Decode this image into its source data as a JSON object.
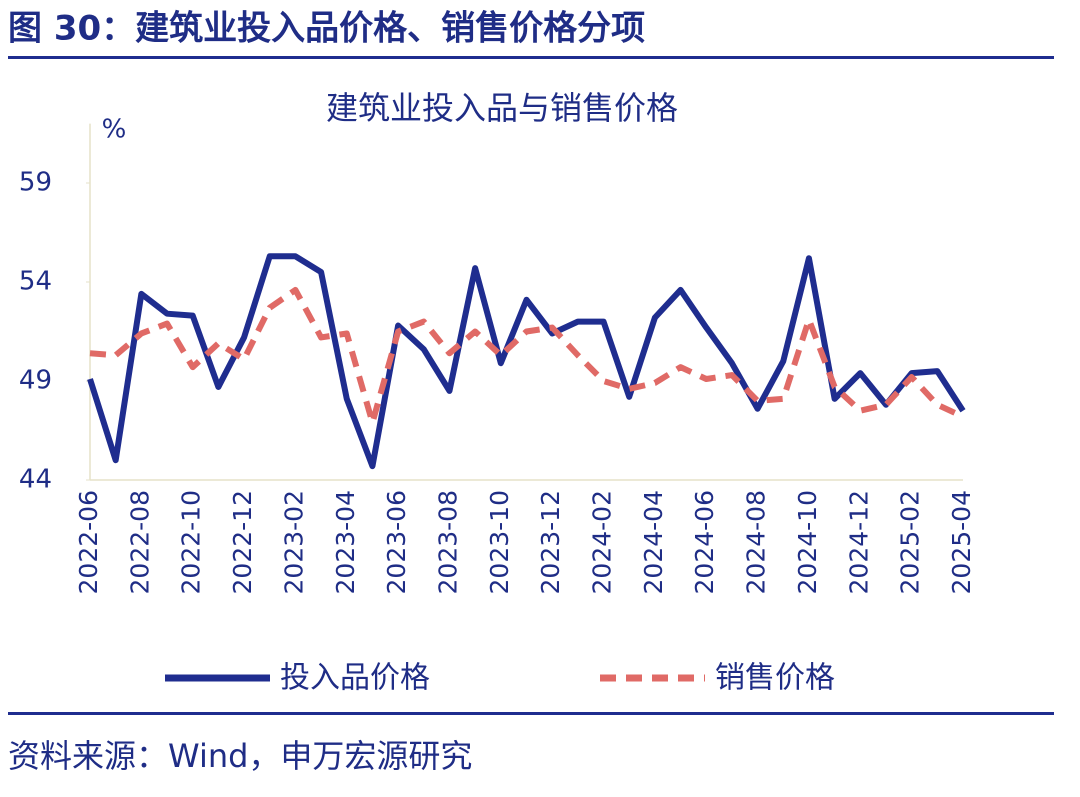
{
  "header": {
    "title": "图 30：建筑业投入品价格、销售价格分项"
  },
  "source": "资料来源：Wind，申万宏源研究",
  "chart_data": {
    "type": "line",
    "title": "建筑业投入品与销售价格",
    "y_label": "%",
    "categories": [
      "2022-06",
      null,
      "2022-08",
      null,
      "2022-10",
      null,
      "2022-12",
      null,
      "2023-02",
      null,
      "2023-04",
      null,
      "2023-06",
      null,
      "2023-08",
      null,
      "2023-10",
      null,
      "2023-12",
      null,
      "2024-02",
      null,
      "2024-04",
      null,
      "2024-06",
      null,
      "2024-08",
      null,
      "2024-10",
      null,
      "2024-12",
      null,
      "2025-02",
      null,
      "2025-04"
    ],
    "series": [
      {
        "name": "投入品价格",
        "color": "#1f2d8f",
        "dash": false,
        "values": [
          49.1,
          45.0,
          53.4,
          52.4,
          52.3,
          48.7,
          51.2,
          55.3,
          55.3,
          54.5,
          48.1,
          44.7,
          51.8,
          50.6,
          48.5,
          54.7,
          49.9,
          53.1,
          51.4,
          52.0,
          52.0,
          48.2,
          52.2,
          53.6,
          51.7,
          49.9,
          47.6,
          50.0,
          55.2,
          48.1,
          49.4,
          47.8,
          49.4,
          49.5,
          47.5
        ]
      },
      {
        "name": "销售价格",
        "color": "#e06a66",
        "dash": true,
        "values": [
          50.4,
          50.3,
          51.4,
          51.9,
          49.7,
          50.9,
          50.1,
          52.7,
          53.6,
          51.2,
          51.4,
          46.9,
          51.5,
          52.0,
          50.4,
          51.5,
          50.3,
          51.5,
          51.7,
          50.3,
          49.0,
          48.6,
          48.9,
          49.7,
          49.1,
          49.3,
          48.0,
          48.1,
          52.1,
          48.7,
          47.5,
          47.8,
          49.2,
          47.8,
          47.2
        ]
      }
    ],
    "ylim": [
      44,
      62
    ],
    "yticks": [
      44,
      49,
      54,
      59
    ],
    "grid": false,
    "legend": "bottom"
  }
}
